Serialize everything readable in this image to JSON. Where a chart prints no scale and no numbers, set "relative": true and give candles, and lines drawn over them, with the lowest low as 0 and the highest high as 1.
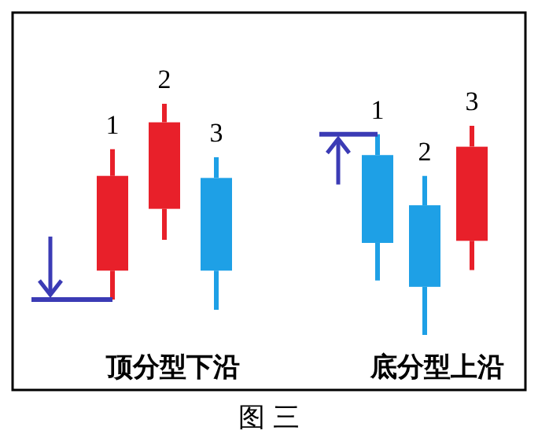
{
  "chart_data": [
    {
      "type": "candlestick",
      "relative": true,
      "xlabel": "顶分型下沿",
      "categories": [
        null,
        null,
        null
      ],
      "ohlc": [
        [
          0.19,
          0.78,
          0.05,
          0.65
        ],
        [
          0.49,
          1,
          0.34,
          0.91
        ],
        [
          0.64,
          0.74,
          0,
          0.19
        ]
      ],
      "colors": [
        "#e8202a",
        "#e8202a",
        "#1ea0e6"
      ],
      "ref_lines": [
        {
          "axis": "y",
          "value": 0.05,
          "color": "#3b3bb5"
        }
      ],
      "annotations": [
        "1",
        "2",
        "3",
        "图 三"
      ]
    },
    {
      "type": "candlestick",
      "relative": true,
      "xlabel": "底分型上沿",
      "categories": [
        null,
        null,
        null
      ],
      "ohlc": [
        [
          0.86,
          0.96,
          0.26,
          0.44
        ],
        [
          0.62,
          0.76,
          0,
          0.23
        ],
        [
          0.45,
          1,
          0.31,
          0.9
        ]
      ],
      "colors": [
        "#1ea0e6",
        "#1ea0e6",
        "#e8202a"
      ],
      "ref_lines": [
        {
          "axis": "y",
          "value": 0.96,
          "color": "#3b3bb5"
        }
      ],
      "annotations": [
        "1",
        "2",
        "3"
      ]
    }
  ]
}
